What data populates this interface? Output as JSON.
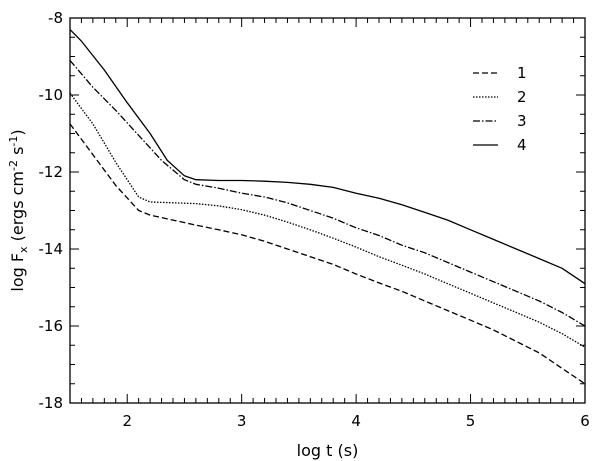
{
  "chart_data": {
    "type": "line",
    "xlabel": "log t (s)",
    "ylabel": "log F_x (ergs cm^-2 s^-1)",
    "ylabel_parts": {
      "pre": "log F",
      "sub": "x",
      "mid1": " (ergs cm",
      "sup1": "-2",
      "mid2": " s",
      "sup2": "-1",
      "post": ")"
    },
    "xlim": [
      1.5,
      6
    ],
    "ylim": [
      -18,
      -8
    ],
    "x_ticks": [
      2,
      3,
      4,
      5,
      6
    ],
    "x_tick_labels": [
      "2",
      "3",
      "4",
      "5",
      "6"
    ],
    "y_ticks": [
      -8,
      -10,
      -12,
      -14,
      -16,
      -18
    ],
    "y_tick_labels": [
      "-8",
      "-10",
      "-12",
      "-14",
      "-16",
      "-18"
    ],
    "legend_position": "top-right",
    "series": [
      {
        "name": "1",
        "style": "dashed",
        "x": [
          1.5,
          1.7,
          1.9,
          2.1,
          2.2,
          2.4,
          2.6,
          2.8,
          3.0,
          3.2,
          3.4,
          3.6,
          3.8,
          4.0,
          4.2,
          4.4,
          4.6,
          4.8,
          5.0,
          5.2,
          5.4,
          5.6,
          5.8,
          6.0
        ],
        "y": [
          -10.75,
          -11.55,
          -12.35,
          -13.0,
          -13.12,
          -13.25,
          -13.38,
          -13.5,
          -13.63,
          -13.8,
          -14.0,
          -14.2,
          -14.4,
          -14.65,
          -14.88,
          -15.1,
          -15.35,
          -15.6,
          -15.85,
          -16.1,
          -16.4,
          -16.7,
          -17.1,
          -17.5
        ]
      },
      {
        "name": "2",
        "style": "dotted",
        "x": [
          1.5,
          1.7,
          1.9,
          2.1,
          2.2,
          2.4,
          2.6,
          2.8,
          3.0,
          3.2,
          3.4,
          3.6,
          3.8,
          4.0,
          4.2,
          4.4,
          4.6,
          4.8,
          5.0,
          5.2,
          5.4,
          5.6,
          5.8,
          6.0
        ],
        "y": [
          -9.95,
          -10.75,
          -11.75,
          -12.65,
          -12.78,
          -12.8,
          -12.82,
          -12.88,
          -12.98,
          -13.12,
          -13.3,
          -13.5,
          -13.72,
          -13.95,
          -14.2,
          -14.42,
          -14.65,
          -14.9,
          -15.15,
          -15.4,
          -15.65,
          -15.9,
          -16.2,
          -16.55
        ]
      },
      {
        "name": "3",
        "style": "dash-dot",
        "x": [
          1.5,
          1.7,
          1.9,
          2.1,
          2.3,
          2.5,
          2.6,
          2.8,
          3.0,
          3.2,
          3.4,
          3.6,
          3.8,
          4.0,
          4.2,
          4.4,
          4.6,
          4.8,
          5.0,
          5.2,
          5.4,
          5.6,
          5.8,
          6.0
        ],
        "y": [
          -9.1,
          -9.8,
          -10.4,
          -11.05,
          -11.7,
          -12.2,
          -12.32,
          -12.42,
          -12.55,
          -12.65,
          -12.8,
          -13.0,
          -13.2,
          -13.45,
          -13.65,
          -13.9,
          -14.1,
          -14.35,
          -14.6,
          -14.85,
          -15.1,
          -15.35,
          -15.65,
          -16.0
        ]
      },
      {
        "name": "4",
        "style": "solid",
        "x": [
          1.5,
          1.6,
          1.8,
          2.0,
          2.2,
          2.35,
          2.5,
          2.6,
          2.8,
          3.0,
          3.2,
          3.4,
          3.6,
          3.8,
          4.0,
          4.2,
          4.4,
          4.6,
          4.8,
          5.0,
          5.2,
          5.4,
          5.6,
          5.8,
          6.0
        ],
        "y": [
          -8.3,
          -8.6,
          -9.35,
          -10.2,
          -11.0,
          -11.7,
          -12.1,
          -12.2,
          -12.22,
          -12.22,
          -12.24,
          -12.27,
          -12.32,
          -12.4,
          -12.55,
          -12.68,
          -12.85,
          -13.05,
          -13.25,
          -13.5,
          -13.75,
          -14.0,
          -14.25,
          -14.5,
          -14.9
        ]
      }
    ]
  }
}
